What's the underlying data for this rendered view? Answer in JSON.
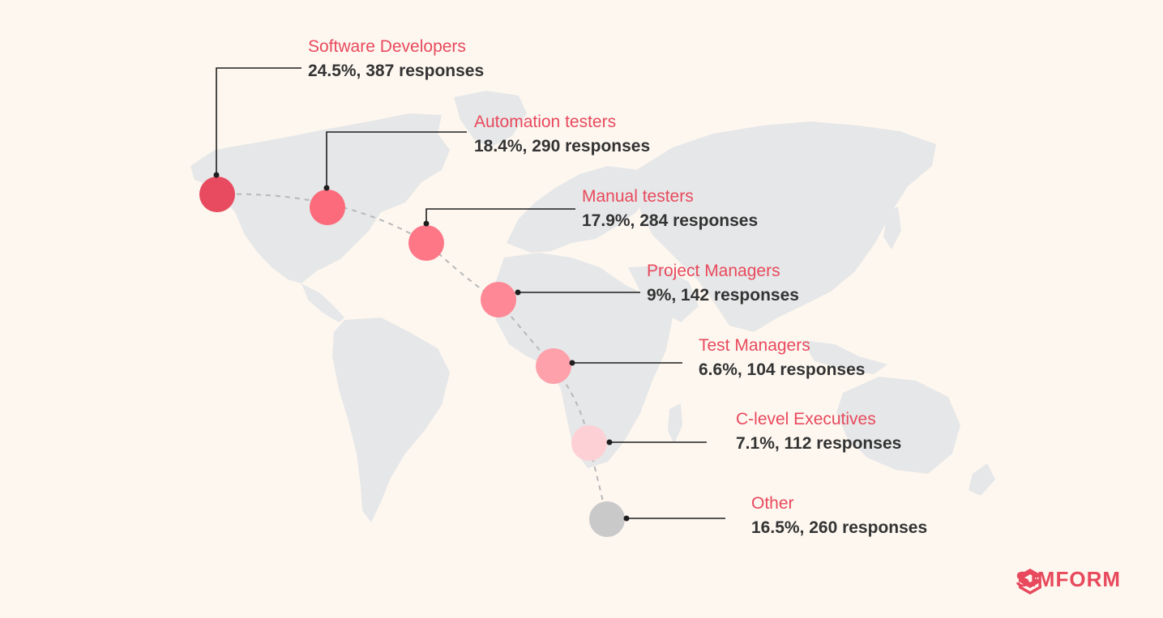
{
  "chart_data": {
    "type": "bubble-map",
    "categories": [
      "Software Developers",
      "Automation testers",
      "Manual testers",
      "Project Managers",
      "Test Managers",
      "C-level Executives",
      "Other"
    ],
    "percent": [
      24.5,
      18.4,
      17.9,
      9,
      6.6,
      7.1,
      16.5
    ],
    "responses": [
      387,
      290,
      284,
      142,
      104,
      112,
      260
    ],
    "labels": [
      {
        "title": "Software Developers",
        "value": "24.5%, 387 responses",
        "color": "#e84a5f"
      },
      {
        "title": "Automation testers",
        "value": "18.4%, 290 responses",
        "color": "#fb6b7c"
      },
      {
        "title": "Manual testers",
        "value": "17.9%, 284 responses",
        "color": "#fd7787"
      },
      {
        "title": "Project Managers",
        "value": "9%, 142 responses",
        "color": "#fe8896"
      },
      {
        "title": "Test Managers",
        "value": "6.6%, 104 responses",
        "color": "#fea1ab"
      },
      {
        "title": "C-level Executives",
        "value": "7.1%, 112 responses",
        "color": "#fdd0d6"
      },
      {
        "title": "Other",
        "value": "16.5%, 260 responses",
        "color": "#c9c9c9"
      }
    ]
  },
  "brand": {
    "name": "SIMFORM",
    "color": "#e8495c"
  }
}
